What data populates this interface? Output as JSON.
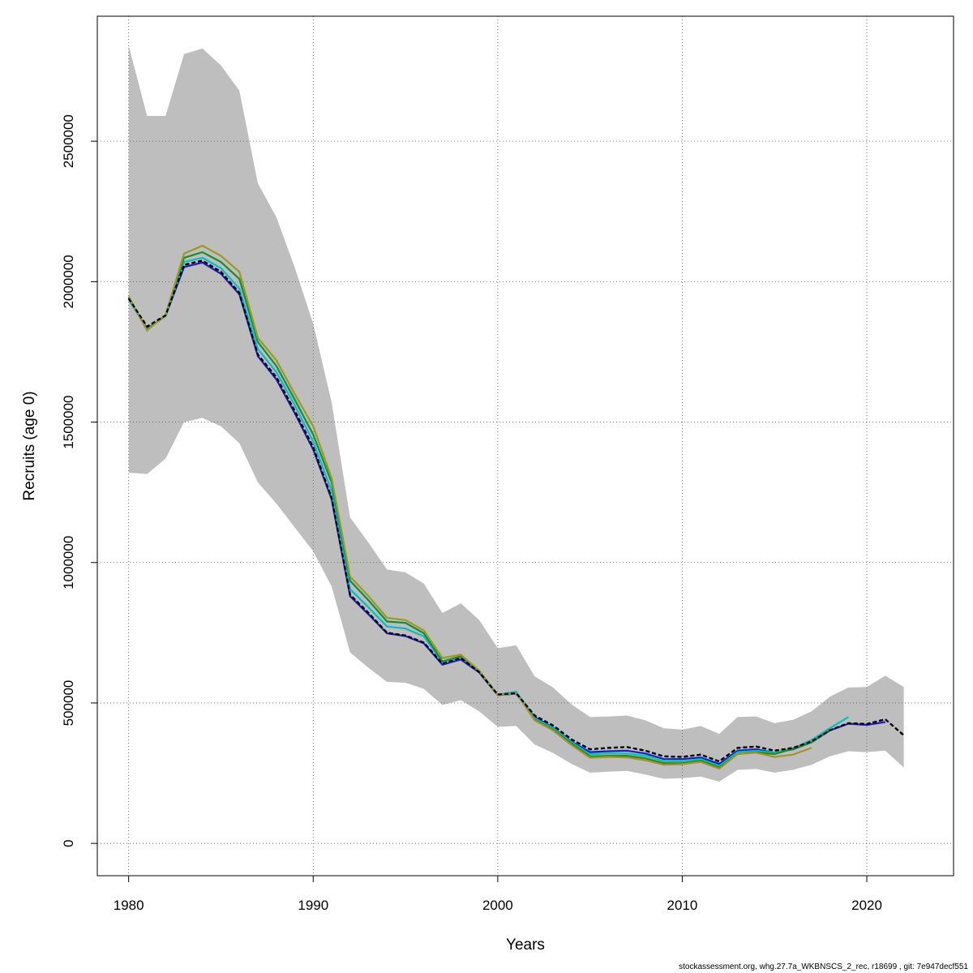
{
  "footer": "stockassessment.org, whg.27.7a_WKBNSCS_2_rec, r18699 , git: 7e947decf551",
  "chart_data": {
    "type": "line",
    "title": "",
    "xlabel": "Years",
    "ylabel": "Recruits (age 0)",
    "xlim": [
      1978.3,
      2024.7
    ],
    "ylim": [
      -115000,
      2945000
    ],
    "xticks": [
      1980,
      1990,
      2000,
      2010,
      2020
    ],
    "yticks": [
      0,
      500000,
      1000000,
      1500000,
      2000000,
      2500000
    ],
    "xtick_labels": [
      "1980",
      "1990",
      "2000",
      "2010",
      "2020"
    ],
    "ytick_labels": [
      "0",
      "500000",
      "1000000",
      "1500000",
      "2000000",
      "2500000"
    ],
    "grid": true,
    "legend": "none",
    "band": {
      "color": "#bebebe",
      "x": [
        1980,
        1981,
        1982,
        1983,
        1984,
        1985,
        1986,
        1987,
        1988,
        1989,
        1990,
        1991,
        1992,
        1993,
        1994,
        1995,
        1996,
        1997,
        1998,
        1999,
        2000,
        2001,
        2002,
        2003,
        2004,
        2005,
        2006,
        2007,
        2008,
        2009,
        2010,
        2011,
        2012,
        2013,
        2014,
        2015,
        2016,
        2017,
        2018,
        2019,
        2020,
        2021,
        2022
      ],
      "upper": [
        2840000,
        2590000,
        2590000,
        2810000,
        2830000,
        2770000,
        2680000,
        2350000,
        2230000,
        2050000,
        1850000,
        1570000,
        1160000,
        1070000,
        975000,
        965000,
        925000,
        820000,
        855000,
        795000,
        695000,
        705000,
        595000,
        555000,
        495000,
        450000,
        452000,
        455000,
        438000,
        410000,
        405000,
        418000,
        390000,
        450000,
        452000,
        428000,
        440000,
        470000,
        522000,
        555000,
        557000,
        597000,
        557000
      ],
      "lower": [
        1320000,
        1315000,
        1370000,
        1500000,
        1515000,
        1485000,
        1425000,
        1285000,
        1210000,
        1125000,
        1040000,
        915000,
        680000,
        625000,
        575000,
        572000,
        550000,
        493000,
        510000,
        470000,
        415000,
        418000,
        352000,
        322000,
        283000,
        252000,
        255000,
        258000,
        245000,
        230000,
        232000,
        238000,
        220000,
        262000,
        265000,
        252000,
        262000,
        280000,
        310000,
        328000,
        325000,
        330000,
        270000
      ]
    },
    "series": [
      {
        "color": "#000000",
        "dashed": true,
        "x": [
          1980,
          1981,
          1982,
          1983,
          1984,
          1985,
          1986,
          1987,
          1988,
          1989,
          1990,
          1991,
          1992,
          1993,
          1994,
          1995,
          1996,
          1997,
          1998,
          1999,
          2000,
          2001,
          2002,
          2003,
          2004,
          2005,
          2006,
          2007,
          2008,
          2009,
          2010,
          2011,
          2012,
          2013,
          2014,
          2015,
          2016,
          2017,
          2018,
          2019,
          2020,
          2021,
          2022
        ],
        "values": [
          1940000,
          1840000,
          1880000,
          2060000,
          2075000,
          2035000,
          1960000,
          1740000,
          1660000,
          1540000,
          1410000,
          1230000,
          885000,
          820000,
          750000,
          740000,
          715000,
          640000,
          660000,
          610000,
          530000,
          535000,
          455000,
          420000,
          370000,
          335000,
          340000,
          343000,
          330000,
          310000,
          308000,
          316000,
          292000,
          340000,
          345000,
          330000,
          340000,
          363000,
          403000,
          428000,
          425000,
          442000,
          385000
        ]
      },
      {
        "color": "#1b1bbf",
        "dashed": false,
        "x": [
          1980,
          1981,
          1982,
          1983,
          1984,
          1985,
          1986,
          1987,
          1988,
          1989,
          1990,
          1991,
          1992,
          1993,
          1994,
          1995,
          1996,
          1997,
          1998,
          1999,
          2000,
          2001,
          2002,
          2003,
          2004,
          2005,
          2006,
          2007,
          2008,
          2009,
          2010,
          2011,
          2012,
          2013,
          2014,
          2015,
          2016,
          2017,
          2018,
          2019,
          2020,
          2021
        ],
        "values": [
          1938000,
          1832000,
          1878000,
          2052000,
          2068000,
          2028000,
          1955000,
          1735000,
          1652000,
          1532000,
          1402000,
          1225000,
          880000,
          815000,
          748000,
          738000,
          712000,
          636000,
          655000,
          608000,
          528000,
          533000,
          450000,
          412000,
          362000,
          325000,
          328000,
          330000,
          320000,
          300000,
          300000,
          306000,
          283000,
          330000,
          335000,
          322000,
          335000,
          360000,
          402000,
          426000,
          422000,
          432000
        ]
      },
      {
        "color": "#00c0c0",
        "dashed": false,
        "x": [
          1980,
          1981,
          1982,
          1983,
          1984,
          1985,
          1986,
          1987,
          1988,
          1989,
          1990,
          1991,
          1992,
          1993,
          1994,
          1995,
          1996,
          1997,
          1998,
          1999,
          2000,
          2001,
          2002,
          2003,
          2004,
          2005,
          2006,
          2007,
          2008,
          2009,
          2010,
          2011,
          2012,
          2013,
          2014,
          2015,
          2016,
          2017,
          2018,
          2019
        ],
        "values": [
          1938000,
          1830000,
          1878000,
          2070000,
          2085000,
          2048000,
          1975000,
          1760000,
          1678000,
          1560000,
          1430000,
          1255000,
          905000,
          840000,
          772000,
          765000,
          737000,
          645000,
          662000,
          612000,
          530000,
          540000,
          445000,
          410000,
          360000,
          318000,
          320000,
          320000,
          312000,
          292000,
          292000,
          300000,
          276000,
          325000,
          330000,
          322000,
          338000,
          368000,
          410000,
          450000
        ]
      },
      {
        "color": "#1a8c2a",
        "dashed": false,
        "x": [
          1980,
          1981,
          1982,
          1983,
          1984,
          1985,
          1986,
          1987,
          1988,
          1989,
          1990,
          1991,
          1992,
          1993,
          1994,
          1995,
          1996,
          1997,
          1998,
          1999,
          2000,
          2001,
          2002,
          2003,
          2004,
          2005,
          2006,
          2007,
          2008,
          2009,
          2010,
          2011,
          2012,
          2013,
          2014,
          2015,
          2016,
          2017,
          2018
        ],
        "values": [
          1945000,
          1828000,
          1880000,
          2085000,
          2105000,
          2070000,
          2010000,
          1785000,
          1700000,
          1580000,
          1455000,
          1285000,
          935000,
          865000,
          790000,
          785000,
          748000,
          648000,
          666000,
          612000,
          528000,
          536000,
          440000,
          405000,
          355000,
          310000,
          312000,
          312000,
          303000,
          285000,
          285000,
          294000,
          270000,
          318000,
          324000,
          318000,
          337000,
          360000,
          405000
        ]
      },
      {
        "color": "#a09628",
        "dashed": false,
        "x": [
          1980,
          1981,
          1982,
          1983,
          1984,
          1985,
          1986,
          1987,
          1988,
          1989,
          1990,
          1991,
          1992,
          1993,
          1994,
          1995,
          1996,
          1997,
          1998,
          1999,
          2000,
          2001,
          2002,
          2003,
          2004,
          2005,
          2006,
          2007,
          2008,
          2009,
          2010,
          2011,
          2012,
          2013,
          2014,
          2015,
          2016,
          2017
        ],
        "values": [
          1948000,
          1826000,
          1882000,
          2100000,
          2128000,
          2092000,
          2035000,
          1800000,
          1720000,
          1600000,
          1485000,
          1300000,
          950000,
          880000,
          803000,
          795000,
          758000,
          660000,
          672000,
          615000,
          528000,
          535000,
          438000,
          402000,
          350000,
          305000,
          308000,
          306000,
          296000,
          280000,
          282000,
          290000,
          266000,
          318000,
          323000,
          308000,
          316000,
          340000
        ]
      }
    ]
  }
}
